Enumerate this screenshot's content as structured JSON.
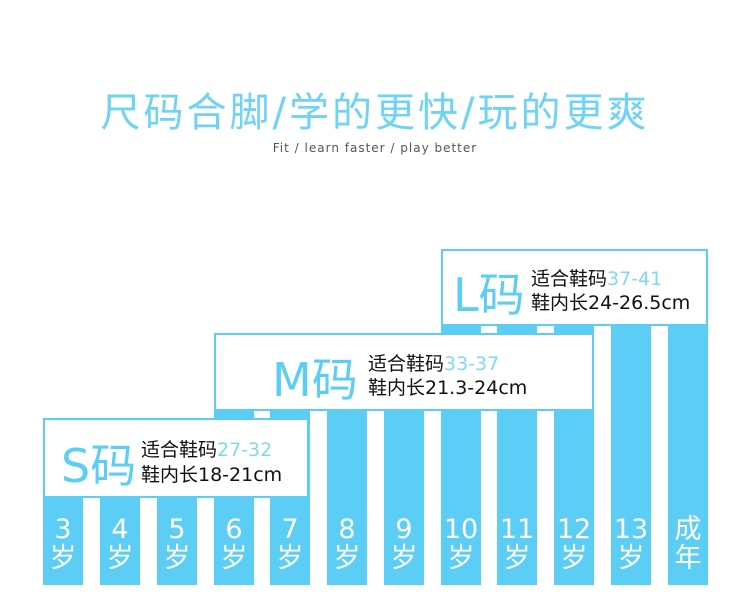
{
  "header": {
    "title": "尺码合脚/学的更快/玩的更爽",
    "subtitle": "Fit / learn faster / play better"
  },
  "columns": [
    {
      "num": "3",
      "unit": "岁"
    },
    {
      "num": "4",
      "unit": "岁"
    },
    {
      "num": "5",
      "unit": "岁"
    },
    {
      "num": "6",
      "unit": "岁"
    },
    {
      "num": "7",
      "unit": "岁"
    },
    {
      "num": "8",
      "unit": "岁"
    },
    {
      "num": "9",
      "unit": "岁"
    },
    {
      "num": "10",
      "unit": "岁"
    },
    {
      "num": "11",
      "unit": "岁"
    },
    {
      "num": "12",
      "unit": "岁"
    },
    {
      "num": "13",
      "unit": "岁"
    },
    {
      "num": "成",
      "unit": "年"
    }
  ],
  "sizes": [
    {
      "letter": "S码",
      "fit_label": "适合鞋码",
      "fit_range": "27-32",
      "length_label": "鞋内长18-21cm"
    },
    {
      "letter": "M码",
      "fit_label": "适合鞋码",
      "fit_range": "33-37",
      "length_label": "鞋内长21.3-24cm"
    },
    {
      "letter": "L码",
      "fit_label": "适合鞋码",
      "fit_range": "37-41",
      "length_label": "鞋内长24-26.5cm"
    }
  ],
  "colors": {
    "accent": "#5ccdf4",
    "title": "#6fd3f3"
  }
}
